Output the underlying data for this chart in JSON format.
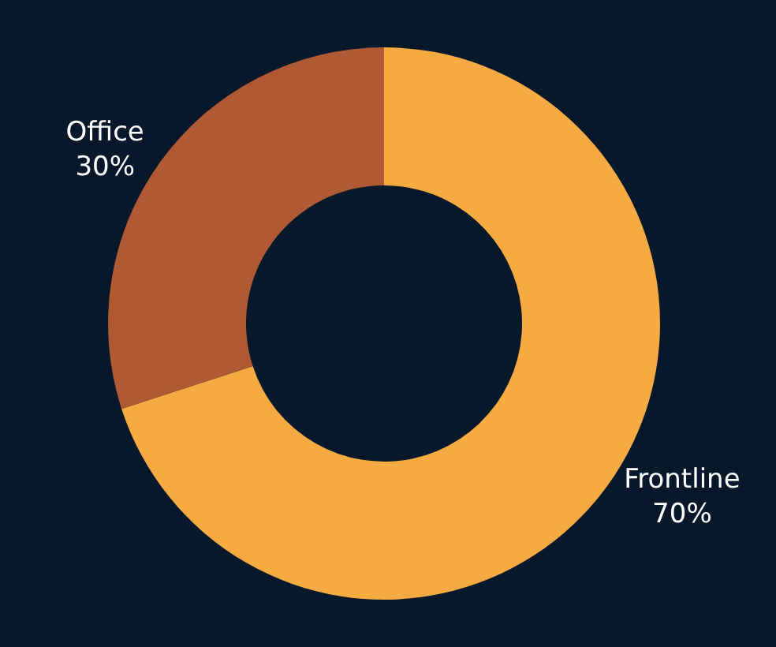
{
  "chart_data": {
    "type": "donut",
    "categories": [
      "Frontline",
      "Office"
    ],
    "values": [
      70,
      30
    ],
    "colors": [
      "#f5ab42",
      "#b05a35"
    ],
    "value_labels": [
      "70%",
      "30%"
    ],
    "legend": false
  }
}
